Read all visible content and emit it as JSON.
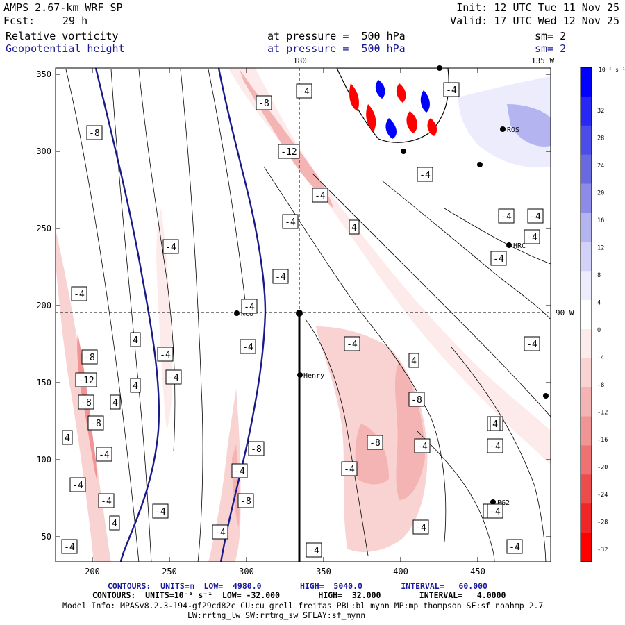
{
  "header": {
    "model": "AMPS 2.67-km WRF SP",
    "fcst_label": "Fcst:",
    "fcst_value": "29 h",
    "init": "Init: 12 UTC Tue 11 Nov 25",
    "valid": "Valid: 17 UTC Wed 12 Nov 25",
    "field1": "Relative vorticity",
    "field1_pressure": "at pressure =  500 hPa",
    "field1_sm": "sm= 2",
    "field2": "Geopotential height",
    "field2_pressure": "at pressure =  500 hPa",
    "field2_sm": "sm= 2"
  },
  "map": {
    "lon_labels": {
      "top_left": "180",
      "top_right": "135 W",
      "right": "90 W"
    },
    "x_ticks": [
      "200",
      "250",
      "300",
      "350",
      "400",
      "450"
    ],
    "y_ticks": [
      "50",
      "100",
      "150",
      "200",
      "250",
      "300",
      "350"
    ],
    "stations": [
      "NCO",
      "Henry",
      "HRC",
      "ROS",
      "PG2"
    ],
    "contour_labels": [
      "-4",
      "-8",
      "-12",
      "-4",
      "-8",
      "-4",
      "-4",
      "-4",
      "4",
      "-4",
      "-4",
      "-4",
      "-4",
      "-4",
      "-4",
      "-4",
      "-8",
      "-12",
      "-8",
      "-8",
      "4",
      "-4",
      "-4",
      "-4",
      "4",
      "4",
      "4",
      "-4",
      "-4",
      "-4",
      "-4",
      "-4",
      "-4",
      "-4",
      "-8",
      "-8",
      "-4",
      "-4",
      "-4",
      "4",
      "-4",
      "-4",
      "-4",
      "4",
      "-4",
      "-4",
      "-4",
      "-4",
      "4",
      "-4",
      "-8",
      "-8",
      "-4"
    ]
  },
  "colorbar": {
    "units": "10⁻⁵ s⁻¹",
    "labels": [
      "32",
      "28",
      "24",
      "20",
      "16",
      "12",
      "8",
      "4",
      "0",
      "-4",
      "-8",
      "-12",
      "-16",
      "-20",
      "-24",
      "-28",
      "-32"
    ],
    "colors": [
      "#0000ff",
      "#2828f4",
      "#4c4ce8",
      "#6a6ae0",
      "#8c8ce8",
      "#b4b4f0",
      "#d2d2f8",
      "#ececfc",
      "#ffffff",
      "#fdeaea",
      "#f9d2d2",
      "#f5b4b4",
      "#f19494",
      "#ee7272",
      "#ec4c4c",
      "#f02626",
      "#ff0000"
    ]
  },
  "footer": {
    "line1": "CONTOURS:  UNITS=m  LOW=  4980.0        HIGH=  5040.0        INTERVAL=   60.000",
    "line2": "CONTOURS:  UNITS=10⁻⁵ s⁻¹  LOW= -32.000        HIGH=  32.000        INTERVAL=   4.0000",
    "line3": "Model Info: MPASv8.2.3-194-gf29cd82c CU:cu_grell_freitas PBL:bl_mynn MP:mp_thompson SF:sf_noahmp 2.7",
    "line4": "LW:rrtmg_lw SW:rrtmg_sw SFLAY:sf_mynn"
  }
}
